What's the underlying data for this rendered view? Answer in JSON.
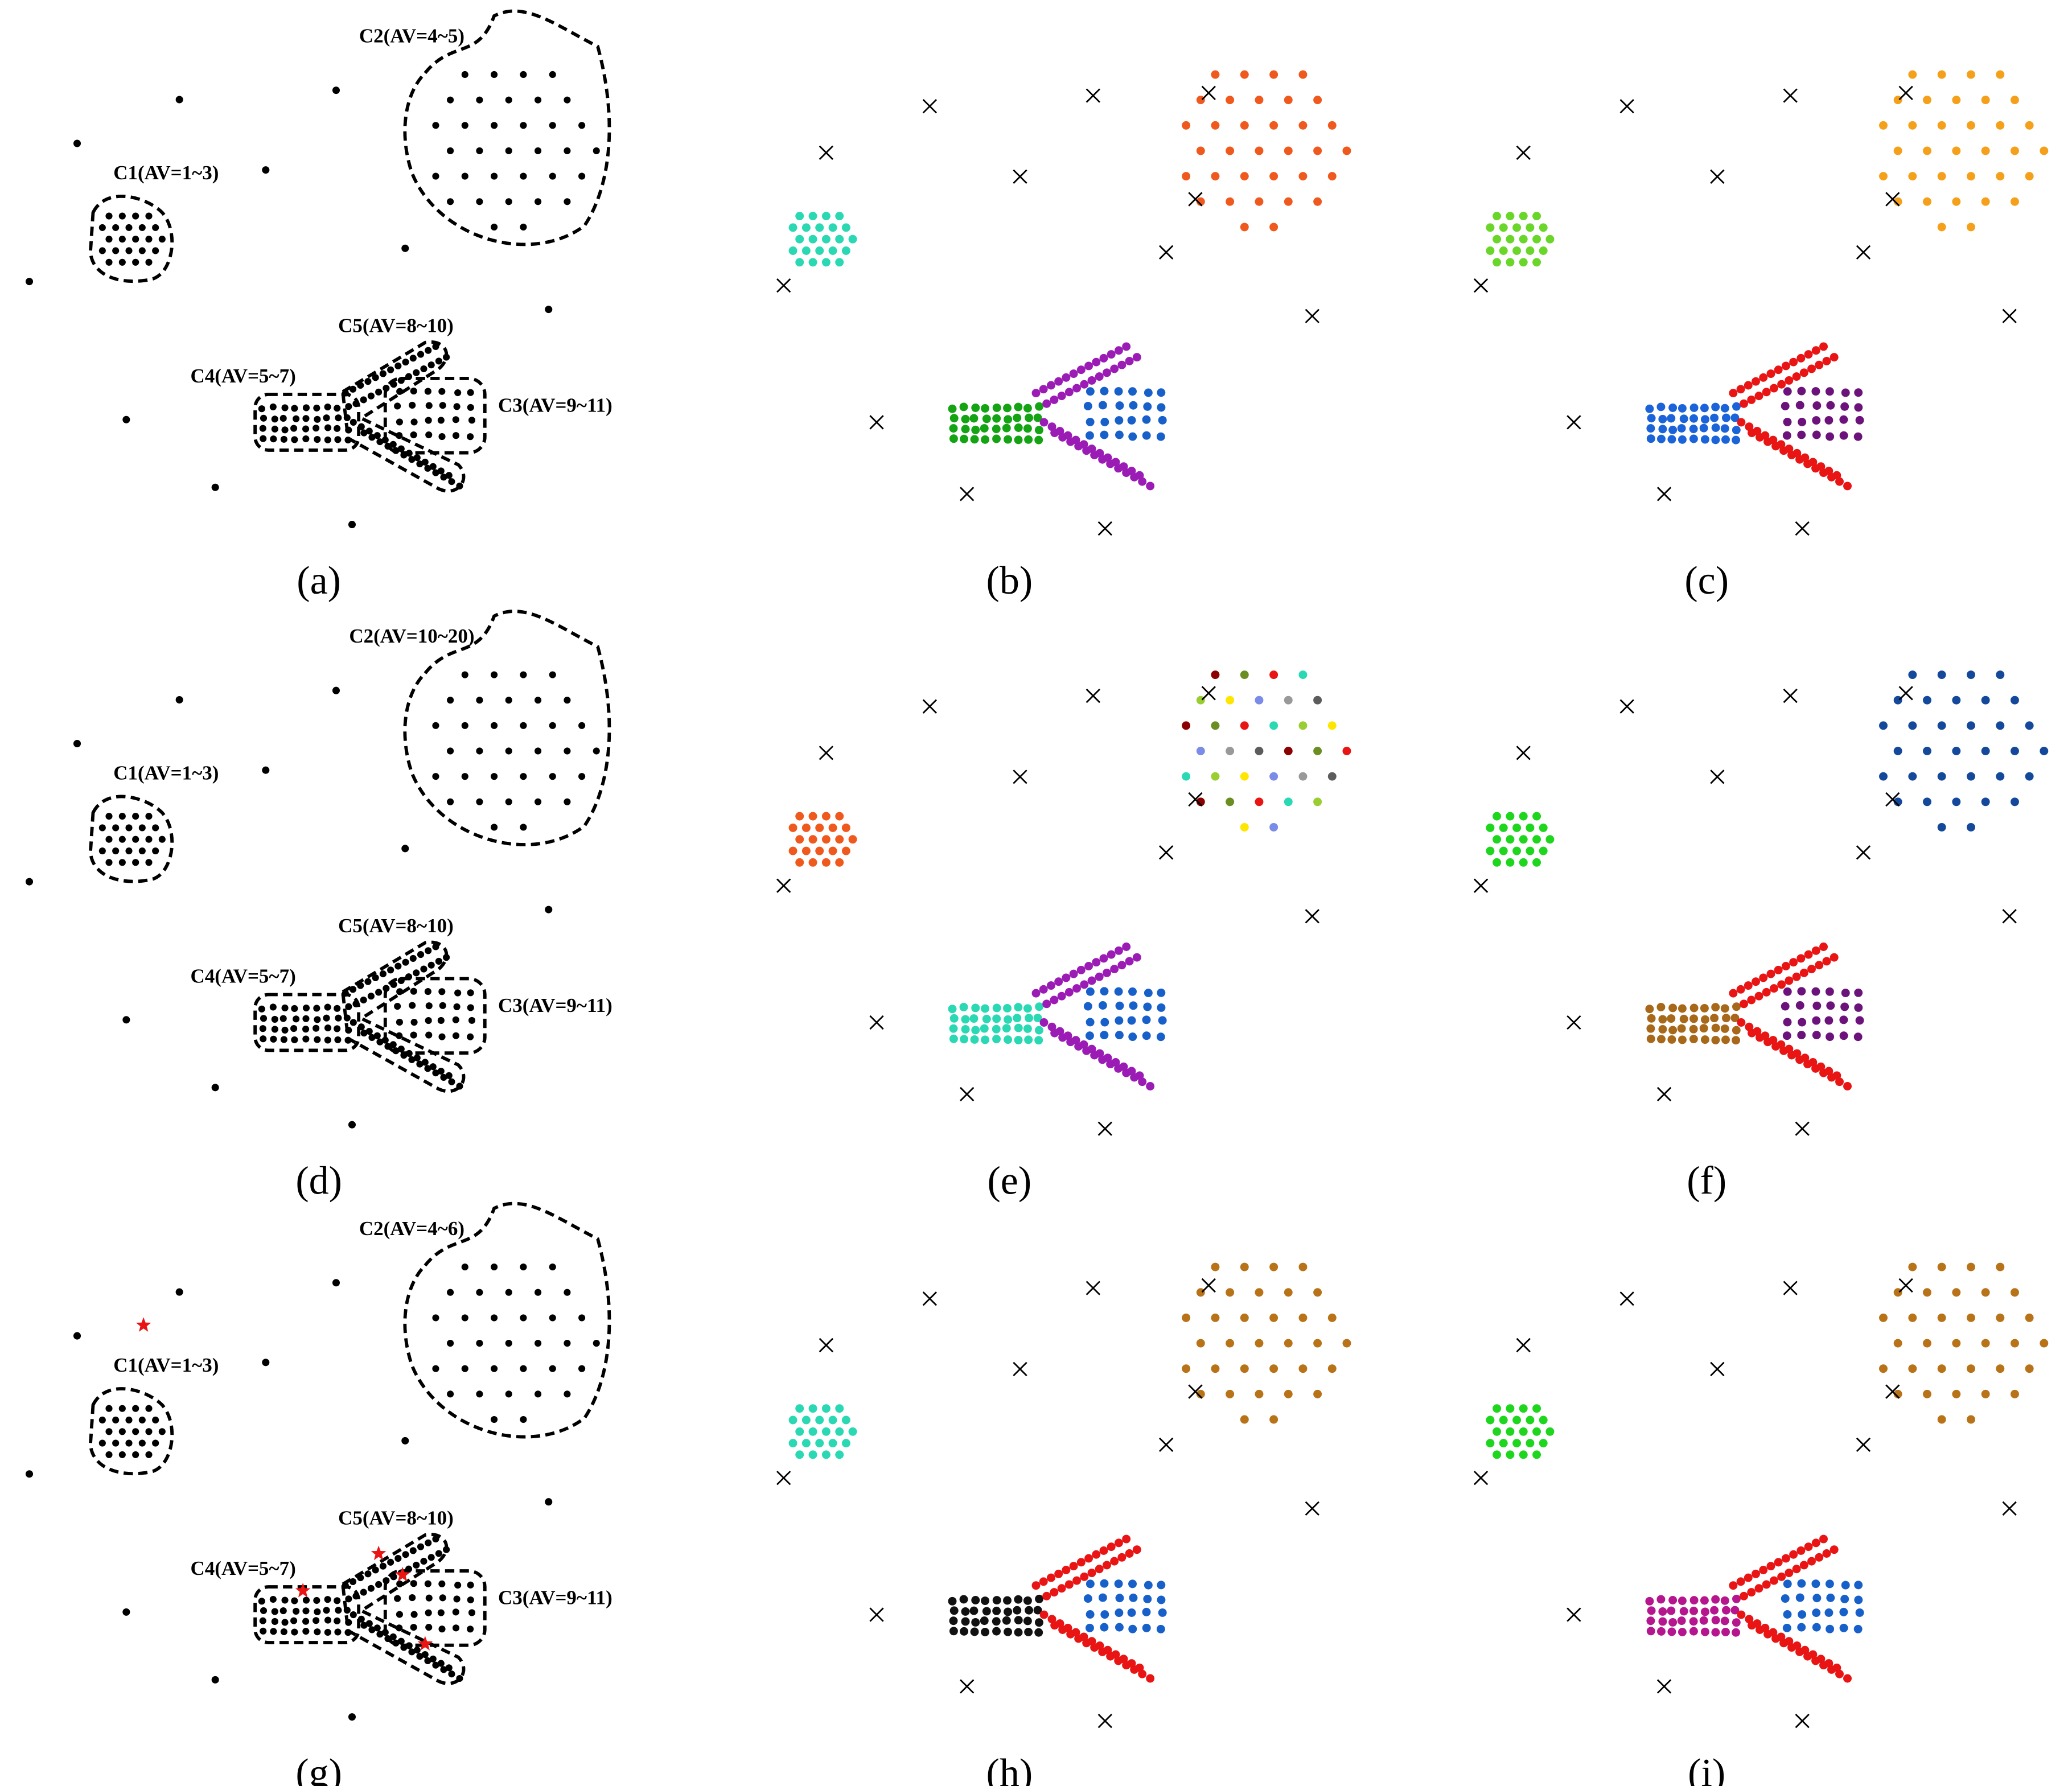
{
  "panels": [
    {
      "label": "(a)",
      "annotations": [
        "C1(AV=1~3)",
        "C2(AV=4~5)",
        "C5(AV=8~10)",
        "C4(AV=5~7)",
        "C3(AV=9~11)"
      ]
    },
    {
      "label": "(b)"
    },
    {
      "label": "(c)"
    },
    {
      "label": "(d)",
      "annotations": [
        "C1(AV=1~3)",
        "C2(AV=10~20)",
        "C5(AV=8~10)",
        "C4(AV=5~7)",
        "C3(AV=9~11)"
      ]
    },
    {
      "label": "(e)"
    },
    {
      "label": "(f)"
    },
    {
      "label": "(g)",
      "annotations": [
        "C1(AV=1~3)",
        "C2(AV=4~6)",
        "C5(AV=8~10)",
        "C4(AV=5~7)",
        "C3(AV=9~11)"
      ]
    },
    {
      "label": "(h)"
    },
    {
      "label": "(i)"
    }
  ]
}
